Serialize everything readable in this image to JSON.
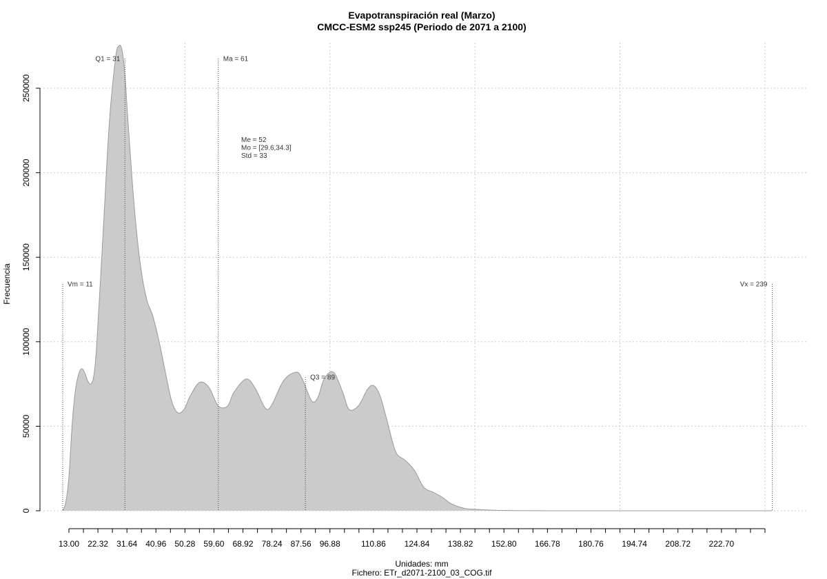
{
  "chart_data": {
    "type": "area",
    "title": "Evapotranspiración real (Marzo)",
    "subtitle": "CMCC-ESM2 ssp245 (Periodo de 2071 a 2100)",
    "xlabel": "Unidades: mm",
    "ylabel": "Frecuencia",
    "footer": "Fichero: ETr_d2071-2100_03_COG.tif",
    "xlim": [
      8.2,
      242.7
    ],
    "ylim": [
      0,
      250000
    ],
    "y_ticks": [
      0,
      50000,
      100000,
      150000,
      200000,
      250000
    ],
    "y_tick_labels": [
      "0",
      "50000",
      "100000",
      "150000",
      "200000",
      "250000"
    ],
    "x_tick_labels": [
      "13.00",
      "22.32",
      "31.64",
      "40.96",
      "50.28",
      "59.60",
      "68.92",
      "78.24",
      "87.56",
      "96.88",
      "110.86",
      "124.84",
      "138.82",
      "152.80",
      "166.78",
      "180.76",
      "194.74",
      "208.72",
      "222.70"
    ],
    "x_tick_label_values": [
      13.0,
      22.32,
      31.64,
      40.96,
      50.28,
      59.6,
      68.92,
      78.24,
      87.56,
      96.88,
      110.86,
      124.84,
      138.82,
      152.8,
      166.78,
      180.76,
      194.74,
      208.72,
      222.7
    ],
    "x_minor_tick_step": 4.66,
    "x_grid": [
      50.28,
      96.88,
      143.48,
      190.08,
      236.68
    ],
    "grid": true,
    "fill_color": "#cbcbcb",
    "line_color": "#999999",
    "x": [
      11,
      12,
      13,
      14,
      15,
      16,
      17,
      18,
      19,
      20,
      21,
      22,
      24,
      26,
      28,
      29,
      30,
      31,
      32,
      34,
      36,
      38,
      40,
      42,
      44,
      46,
      48,
      50,
      52,
      55,
      58,
      61,
      64,
      66,
      70,
      73,
      76,
      78,
      82,
      86,
      88,
      91,
      93,
      95,
      98,
      101,
      103,
      106,
      109,
      111,
      113,
      115,
      118,
      121,
      124,
      127,
      130,
      133,
      136,
      140,
      144,
      148,
      152,
      160,
      170,
      239
    ],
    "y": [
      0,
      5000,
      20000,
      50000,
      70000,
      80000,
      84000,
      82000,
      77000,
      75000,
      80000,
      100000,
      165000,
      230000,
      268000,
      275000,
      273000,
      258000,
      230000,
      180000,
      145000,
      125000,
      115000,
      100000,
      82000,
      65000,
      58000,
      60000,
      68000,
      76000,
      73000,
      62000,
      62000,
      70000,
      78000,
      72000,
      61000,
      62000,
      77000,
      82000,
      78000,
      65000,
      67000,
      78000,
      82000,
      70000,
      60000,
      62000,
      72000,
      74000,
      68000,
      55000,
      35000,
      30000,
      24000,
      14000,
      11000,
      8000,
      4000,
      1500,
      800,
      400,
      200,
      50,
      10,
      0
    ],
    "vlines": [
      {
        "x": 11,
        "label": "Vm = 11",
        "align": "right"
      },
      {
        "x": 31,
        "label": "Q1 = 31",
        "align": "left"
      },
      {
        "x": 61,
        "label": "Ma = 61",
        "align": "right"
      },
      {
        "x": 89,
        "label": "Q3 = 89",
        "align": "right"
      },
      {
        "x": 239,
        "label": "Vx = 239",
        "align": "left"
      }
    ],
    "stats": [
      "Me = 52",
      "Mo = [29.6,34.3]",
      "Std = 33"
    ]
  }
}
